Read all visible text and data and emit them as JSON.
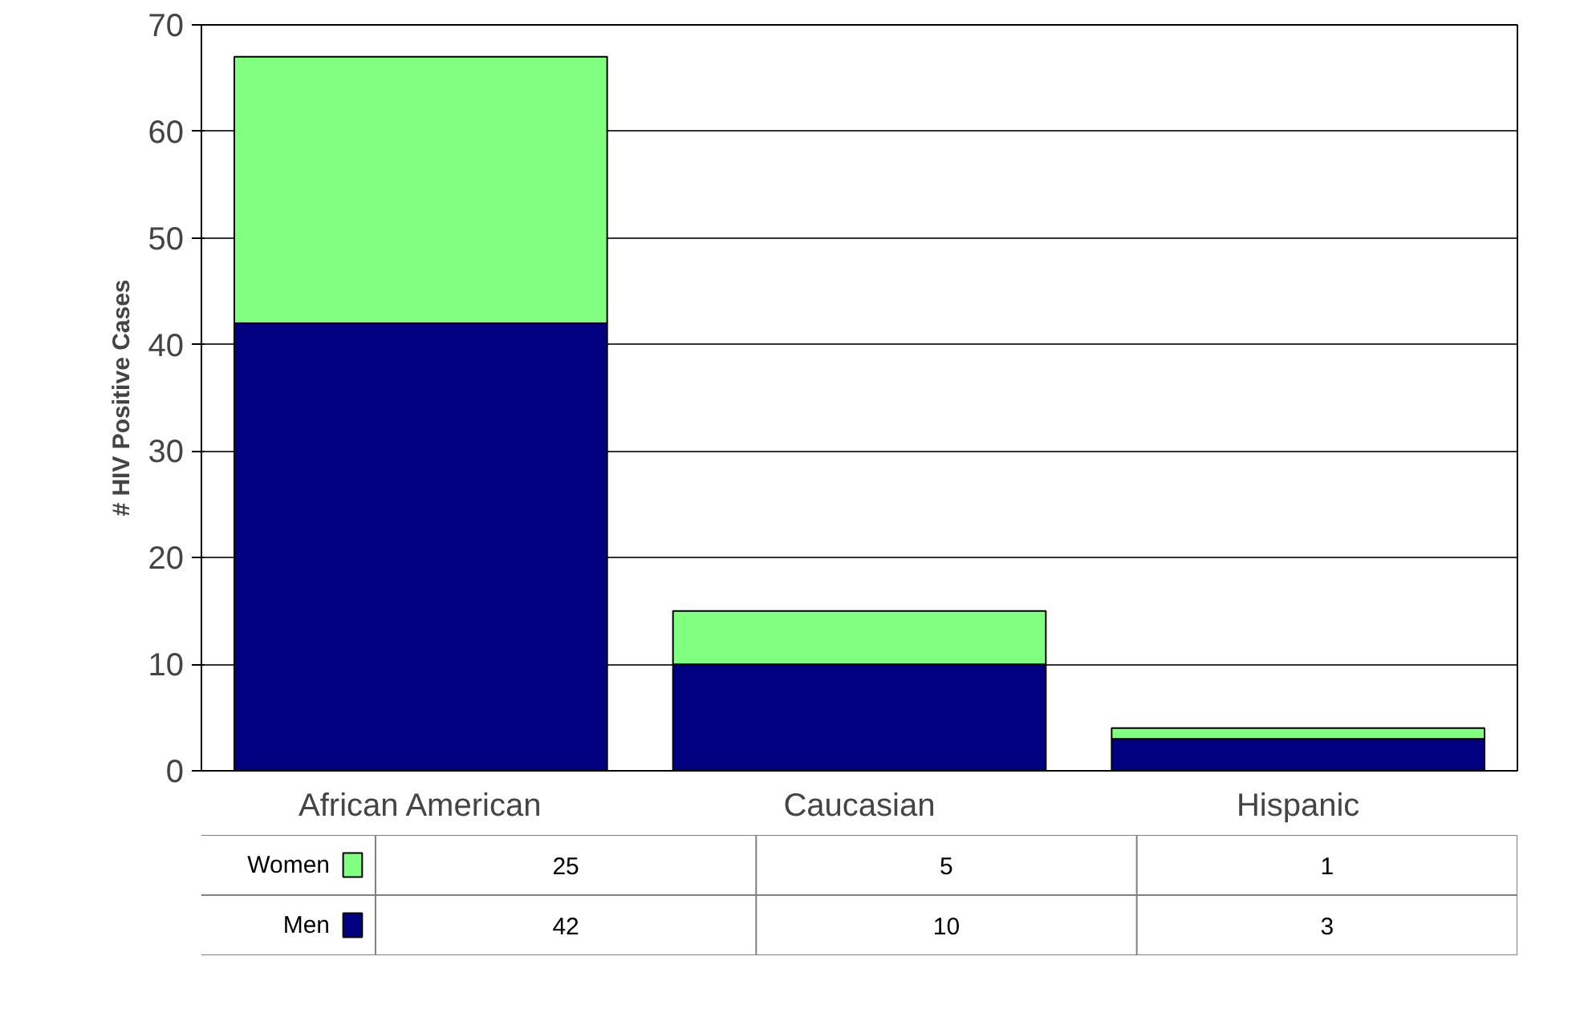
{
  "chart_data": {
    "type": "bar",
    "stacked": true,
    "ylabel": "# HIV Positive Cases",
    "categories": [
      "African American",
      "Caucasian",
      "Hispanic"
    ],
    "series": [
      {
        "name": "Men",
        "color": "#000080",
        "values": [
          42,
          10,
          3
        ]
      },
      {
        "name": "Women",
        "color": "#80ff80",
        "values": [
          25,
          5,
          1
        ]
      }
    ],
    "ylim": [
      0,
      70
    ],
    "yticks": [
      0,
      10,
      20,
      30,
      40,
      50,
      60,
      70
    ],
    "grid": "y",
    "data_labels": true,
    "legend": "bottom left"
  }
}
